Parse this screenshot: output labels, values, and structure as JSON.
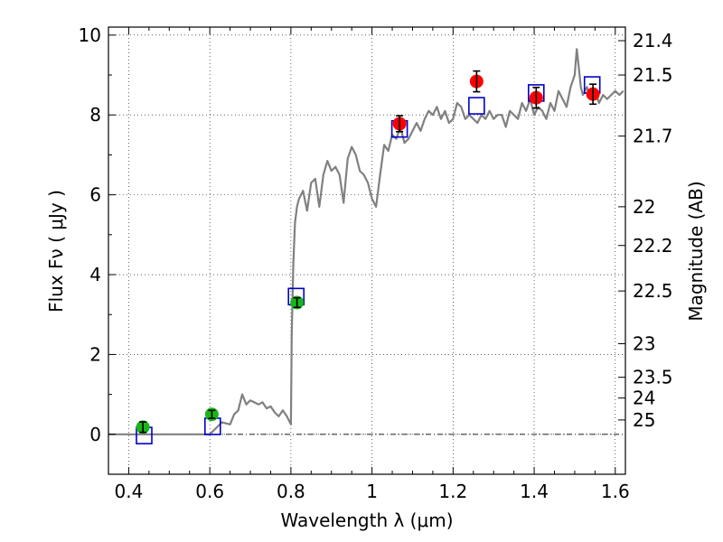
{
  "chart_data": {
    "type": "scatter",
    "xlabel": "Wavelength  λ (μm)",
    "ylabel": "Flux  Fν  ( μJy )",
    "ylabel_right": "Magnitude (AB)",
    "xlim": [
      0.35,
      1.625
    ],
    "ylim": [
      -1.0,
      10.2
    ],
    "grid": true,
    "x_ticks": [
      0.4,
      0.6,
      0.8,
      1.0,
      1.2,
      1.4,
      1.6
    ],
    "x_tick_labels": [
      "0.4",
      "0.6",
      "0.8",
      "1",
      "1.2",
      "1.4",
      "1.6"
    ],
    "y_ticks": [
      0,
      2,
      4,
      6,
      8,
      10
    ],
    "y_tick_labels": [
      "0",
      "2",
      "4",
      "6",
      "8",
      "10"
    ],
    "right_ticks": [
      {
        "flux": 9.86,
        "label": "21.4"
      },
      {
        "flux": 9.0,
        "label": "21.5"
      },
      {
        "flux": 7.47,
        "label": "21.7"
      },
      {
        "flux": 5.7,
        "label": "22"
      },
      {
        "flux": 4.73,
        "label": "22.2"
      },
      {
        "flux": 3.59,
        "label": "22.5"
      },
      {
        "flux": 2.27,
        "label": "23"
      },
      {
        "flux": 1.43,
        "label": "23.5"
      },
      {
        "flux": 0.91,
        "label": "24"
      },
      {
        "flux": 0.36,
        "label": "25"
      }
    ],
    "baseline_y": 0,
    "model_color": "#808080",
    "model_spectrum": {
      "x": [
        0.35,
        0.6,
        0.61,
        0.63,
        0.65,
        0.66,
        0.67,
        0.68,
        0.69,
        0.7,
        0.71,
        0.72,
        0.73,
        0.74,
        0.75,
        0.76,
        0.77,
        0.78,
        0.79,
        0.8,
        0.802,
        0.806,
        0.81,
        0.815,
        0.82,
        0.83,
        0.84,
        0.85,
        0.86,
        0.87,
        0.88,
        0.89,
        0.9,
        0.91,
        0.92,
        0.93,
        0.94,
        0.95,
        0.96,
        0.97,
        0.98,
        0.99,
        1.0,
        1.01,
        1.02,
        1.03,
        1.04,
        1.05,
        1.06,
        1.07,
        1.08,
        1.09,
        1.1,
        1.11,
        1.12,
        1.13,
        1.14,
        1.15,
        1.16,
        1.17,
        1.18,
        1.19,
        1.2,
        1.21,
        1.22,
        1.23,
        1.24,
        1.25,
        1.26,
        1.27,
        1.28,
        1.29,
        1.3,
        1.31,
        1.32,
        1.33,
        1.34,
        1.35,
        1.36,
        1.37,
        1.38,
        1.39,
        1.4,
        1.41,
        1.42,
        1.43,
        1.44,
        1.45,
        1.46,
        1.47,
        1.48,
        1.49,
        1.5,
        1.505,
        1.51,
        1.515,
        1.52,
        1.53,
        1.54,
        1.55,
        1.56,
        1.57,
        1.58,
        1.59,
        1.6,
        1.61,
        1.62
      ],
      "y": [
        0.0,
        0.0,
        0.1,
        0.3,
        0.25,
        0.5,
        0.6,
        1.0,
        0.75,
        0.85,
        0.8,
        0.75,
        0.8,
        0.65,
        0.7,
        0.55,
        0.45,
        0.6,
        0.45,
        0.25,
        2.5,
        4.3,
        5.3,
        5.7,
        5.9,
        6.1,
        5.6,
        6.3,
        6.4,
        5.7,
        6.5,
        6.85,
        6.6,
        6.7,
        6.5,
        5.8,
        6.9,
        7.2,
        7.0,
        6.6,
        6.5,
        6.3,
        5.9,
        5.7,
        6.5,
        7.25,
        7.1,
        7.5,
        7.4,
        7.7,
        7.3,
        7.4,
        7.6,
        7.8,
        7.6,
        7.9,
        8.1,
        8.0,
        8.2,
        7.9,
        8.1,
        7.8,
        7.9,
        8.3,
        8.2,
        7.9,
        8.0,
        7.9,
        7.8,
        8.0,
        7.9,
        8.1,
        7.9,
        8.0,
        8.0,
        7.7,
        8.1,
        8.0,
        7.9,
        8.3,
        8.1,
        8.4,
        8.0,
        8.2,
        8.1,
        7.9,
        8.3,
        8.1,
        8.6,
        8.4,
        8.2,
        8.7,
        9.0,
        9.65,
        9.2,
        8.7,
        8.5,
        8.7,
        8.4,
        8.6,
        8.3,
        8.5,
        8.4,
        8.5,
        8.6,
        8.5,
        8.6
      ]
    },
    "series": [
      {
        "name": "",
        "marker": "circle",
        "color": "#1ab51a",
        "points": [
          {
            "x": 0.435,
            "y": 0.18,
            "err": 0.13
          },
          {
            "x": 0.605,
            "y": 0.5,
            "err": 0.1
          },
          {
            "x": 0.815,
            "y": 3.3,
            "err": 0.12
          }
        ]
      },
      {
        "name": "",
        "marker": "circle",
        "color": "#ff0000",
        "points": [
          {
            "x": 1.068,
            "y": 7.78,
            "err": 0.2
          },
          {
            "x": 1.258,
            "y": 8.84,
            "err": 0.26
          },
          {
            "x": 1.405,
            "y": 8.43,
            "err": 0.26
          },
          {
            "x": 1.545,
            "y": 8.52,
            "err": 0.25
          }
        ]
      },
      {
        "name": "",
        "marker": "square",
        "color": "#0000cc",
        "points": [
          {
            "x": 0.438,
            "y": -0.03
          },
          {
            "x": 0.607,
            "y": 0.2
          },
          {
            "x": 0.813,
            "y": 3.45
          },
          {
            "x": 1.068,
            "y": 7.65
          },
          {
            "x": 1.258,
            "y": 8.23
          },
          {
            "x": 1.405,
            "y": 8.55
          },
          {
            "x": 1.543,
            "y": 8.75
          }
        ]
      }
    ]
  }
}
